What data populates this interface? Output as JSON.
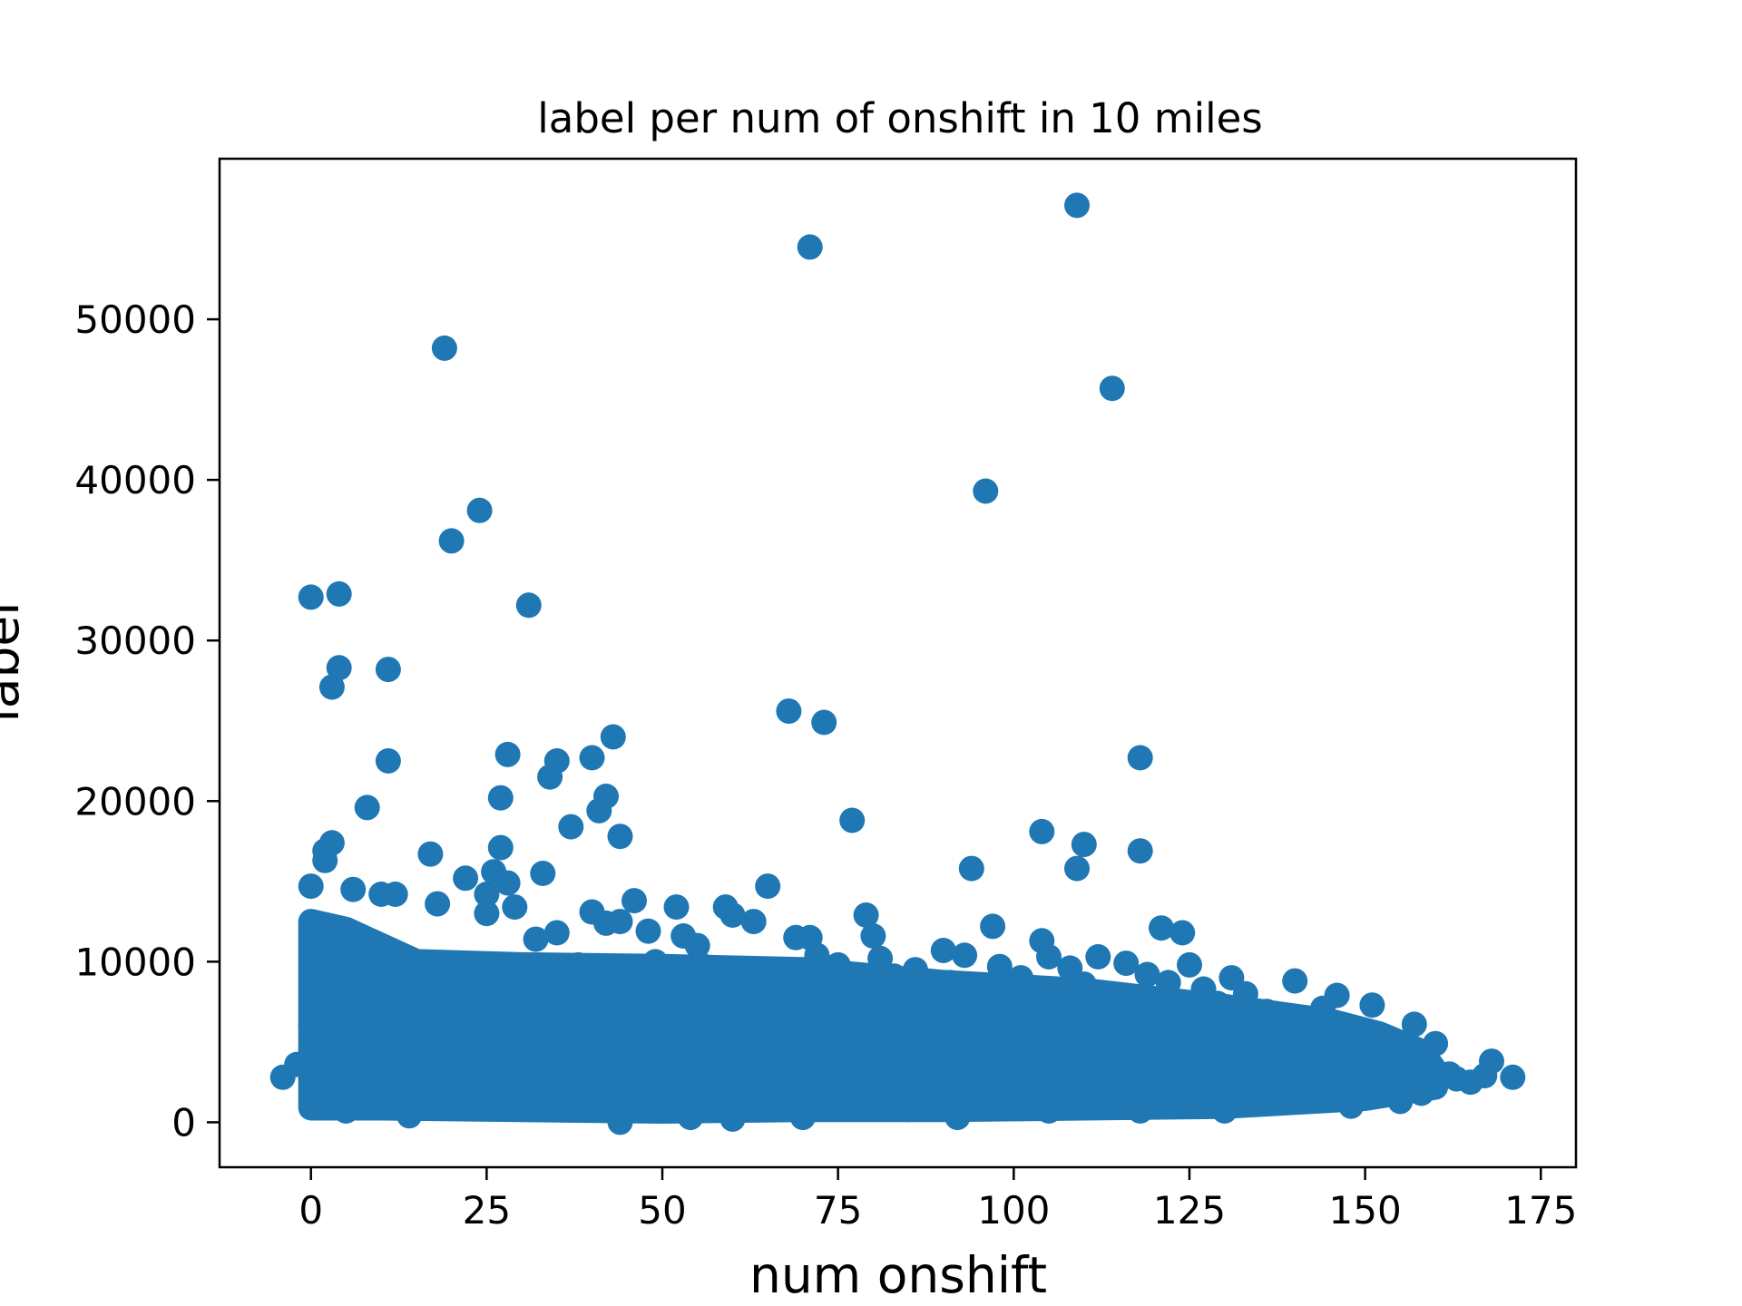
{
  "chart_data": {
    "type": "scatter",
    "title": "label per num of onshift in 10 miles",
    "xlabel": "num onshift",
    "ylabel": "label",
    "xlim": [
      -13,
      180
    ],
    "ylim": [
      -2800,
      60000
    ],
    "xticks": [
      0,
      25,
      50,
      75,
      100,
      125,
      150,
      175
    ],
    "yticks": [
      0,
      10000,
      20000,
      30000,
      40000,
      50000
    ],
    "grid": false,
    "legend": "none",
    "color": "#1f77b4",
    "series": [
      {
        "points": [
          [
            109,
            57100
          ],
          [
            71,
            54500
          ],
          [
            19,
            48200
          ],
          [
            114,
            45700
          ],
          [
            96,
            39300
          ],
          [
            24,
            38100
          ],
          [
            20,
            36200
          ],
          [
            0,
            32700
          ],
          [
            4,
            32900
          ],
          [
            31,
            32200
          ],
          [
            4,
            28300
          ],
          [
            11,
            28200
          ],
          [
            3,
            27100
          ],
          [
            68,
            25600
          ],
          [
            73,
            24900
          ],
          [
            43,
            24000
          ],
          [
            28,
            22900
          ],
          [
            11,
            22500
          ],
          [
            35,
            22500
          ],
          [
            40,
            22700
          ],
          [
            118,
            22700
          ],
          [
            34,
            21500
          ],
          [
            42,
            20300
          ],
          [
            27,
            20200
          ],
          [
            8,
            19600
          ],
          [
            41,
            19400
          ],
          [
            37,
            18400
          ],
          [
            77,
            18800
          ],
          [
            44,
            17800
          ],
          [
            104,
            18100
          ],
          [
            3,
            17400
          ],
          [
            110,
            17300
          ],
          [
            27,
            17100
          ],
          [
            2,
            16900
          ],
          [
            17,
            16700
          ],
          [
            118,
            16900
          ],
          [
            2,
            16300
          ],
          [
            94,
            15800
          ],
          [
            109,
            15800
          ],
          [
            26,
            15600
          ],
          [
            22,
            15200
          ],
          [
            33,
            15500
          ],
          [
            25,
            14200
          ],
          [
            28,
            14900
          ],
          [
            65,
            14700
          ],
          [
            6,
            14500
          ],
          [
            0,
            14700
          ],
          [
            10,
            14200
          ],
          [
            12,
            14200
          ],
          [
            18,
            13600
          ],
          [
            29,
            13400
          ],
          [
            25,
            13000
          ],
          [
            46,
            13800
          ],
          [
            52,
            13400
          ],
          [
            59,
            13400
          ],
          [
            40,
            13100
          ],
          [
            42,
            12400
          ],
          [
            44,
            12500
          ],
          [
            48,
            11900
          ],
          [
            53,
            11600
          ],
          [
            60,
            12900
          ],
          [
            63,
            12500
          ],
          [
            79,
            12900
          ],
          [
            97,
            12200
          ],
          [
            121,
            12100
          ],
          [
            124,
            11800
          ],
          [
            69,
            11500
          ],
          [
            71,
            11500
          ],
          [
            80,
            11600
          ],
          [
            104,
            11300
          ],
          [
            32,
            11400
          ],
          [
            35,
            11800
          ],
          [
            55,
            11000
          ],
          [
            72,
            10400
          ],
          [
            81,
            10200
          ],
          [
            90,
            10700
          ],
          [
            93,
            10400
          ],
          [
            105,
            10300
          ],
          [
            112,
            10300
          ],
          [
            116,
            9900
          ],
          [
            125,
            9800
          ],
          [
            131,
            9000
          ],
          [
            133,
            8000
          ],
          [
            140,
            8800
          ],
          [
            146,
            7900
          ],
          [
            151,
            7300
          ],
          [
            157,
            6100
          ],
          [
            160,
            4900
          ],
          [
            168,
            3800
          ],
          [
            171,
            2800
          ],
          [
            165,
            2500
          ],
          [
            -4,
            2800
          ],
          [
            -2,
            3600
          ],
          [
            0,
            6000
          ],
          [
            0,
            4500
          ],
          [
            56,
            9700
          ],
          [
            86,
            9500
          ],
          [
            98,
            9700
          ],
          [
            108,
            9600
          ],
          [
            119,
            9200
          ],
          [
            127,
            8300
          ],
          [
            136,
            6900
          ],
          [
            144,
            7100
          ],
          [
            149,
            5200
          ],
          [
            154,
            4300
          ],
          [
            38,
            9800
          ],
          [
            49,
            10000
          ],
          [
            58,
            8800
          ],
          [
            64,
            9200
          ],
          [
            75,
            9800
          ],
          [
            83,
            9100
          ],
          [
            91,
            8700
          ],
          [
            101,
            9000
          ],
          [
            110,
            8600
          ],
          [
            122,
            8700
          ],
          [
            129,
            7400
          ],
          [
            139,
            6200
          ],
          [
            147,
            5400
          ],
          [
            156,
            3500
          ],
          [
            162,
            3000
          ],
          [
            44,
            0
          ],
          [
            60,
            200
          ],
          [
            70,
            300
          ],
          [
            92,
            300
          ],
          [
            54,
            300
          ],
          [
            14,
            400
          ],
          [
            5,
            700
          ],
          [
            29,
            900
          ],
          [
            85,
            800
          ],
          [
            105,
            700
          ],
          [
            118,
            700
          ],
          [
            130,
            700
          ],
          [
            148,
            1000
          ],
          [
            155,
            1300
          ],
          [
            158,
            1800
          ],
          [
            163,
            2700
          ],
          [
            167,
            2900
          ]
        ]
      }
    ]
  }
}
